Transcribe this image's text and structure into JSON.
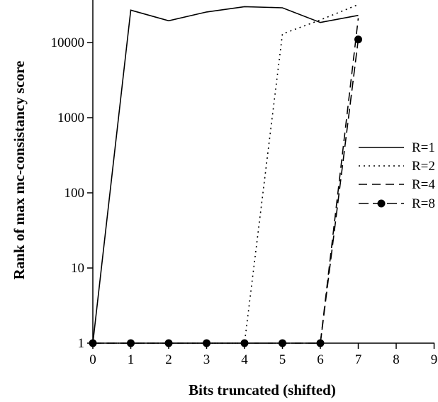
{
  "chart_data": {
    "type": "line",
    "xlabel": "Bits truncated (shifted)",
    "ylabel": "Rank of max mc-consistancy score",
    "xlim": [
      0,
      9
    ],
    "ylim": [
      1,
      35000
    ],
    "y_scale": "log",
    "x_ticks": [
      "0",
      "1",
      "2",
      "3",
      "4",
      "5",
      "6",
      "7",
      "8",
      "9"
    ],
    "y_ticks": [
      "1",
      "10",
      "100",
      "1000",
      "10000"
    ],
    "legend_position": "right",
    "series": [
      {
        "name": "R=1",
        "style": "solid",
        "x": [
          0,
          1,
          2,
          3,
          4,
          5,
          6,
          7
        ],
        "y": [
          1,
          27000,
          19500,
          25500,
          30000,
          29000,
          18500,
          23000
        ]
      },
      {
        "name": "R=2",
        "style": "dotted",
        "x": [
          0,
          1,
          2,
          3,
          4,
          5,
          6,
          7
        ],
        "y": [
          1,
          1,
          1,
          1,
          1,
          13000,
          20000,
          32000
        ]
      },
      {
        "name": "R=4",
        "style": "dashed",
        "x": [
          0,
          1,
          2,
          3,
          4,
          5,
          6,
          7
        ],
        "y": [
          1,
          1,
          1,
          1,
          1,
          1,
          1,
          21000
        ]
      },
      {
        "name": "R=8",
        "style": "dash-dot-marker",
        "x": [
          0,
          1,
          2,
          3,
          4,
          5,
          6,
          7
        ],
        "y": [
          1,
          1,
          1,
          1,
          1,
          1,
          1,
          11000
        ]
      }
    ]
  }
}
